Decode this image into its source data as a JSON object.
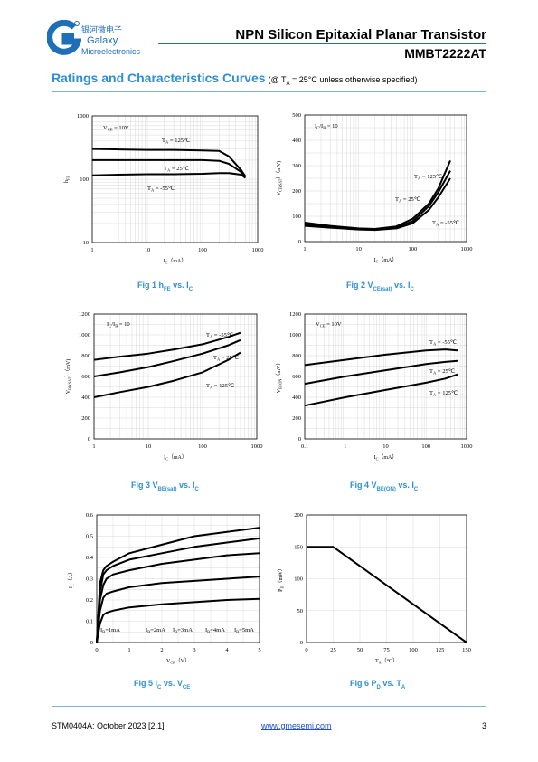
{
  "header": {
    "brand_cn": "银河微电子",
    "brand_en_1": "Galaxy",
    "brand_en_2": "Microelectronics",
    "title": "NPN Silicon Epitaxial Planar Transistor",
    "part_number": "MMBT2222AT"
  },
  "section": {
    "title": "Ratings and Characteristics Curves",
    "condition": "(@ T",
    "condition_sub": "A",
    "condition_rest": " = 25°C unless otherwise specified)"
  },
  "captions": {
    "fig1": {
      "pre": "Fig 1   h",
      "sub": "FE",
      "post": " vs. I",
      "sub2": "C"
    },
    "fig2": {
      "pre": "Fig 2   V",
      "sub": "CE(sat)",
      "post": " vs. I",
      "sub2": "C"
    },
    "fig3": {
      "pre": "Fig 3   V",
      "sub": "BE(sat)",
      "post": " vs. I",
      "sub2": "C"
    },
    "fig4": {
      "pre": "Fig 4   V",
      "sub": "BE(ON)",
      "post": " vs. I",
      "sub2": "C"
    },
    "fig5": {
      "pre": "Fig 5   I",
      "sub": "C",
      "post": " vs. V",
      "sub2": "CE"
    },
    "fig6": {
      "pre": "Fig 6   P",
      "sub": "D",
      "post": " vs. T",
      "sub2": "A"
    }
  },
  "footer": {
    "doc": "STM0404A: October 2023 [2.1]",
    "link": "www.gmesemi.com",
    "page": "3"
  },
  "chart_data": [
    {
      "id": "fig1",
      "type": "line",
      "xscale": "log",
      "yscale": "log",
      "xlim": [
        1,
        1000
      ],
      "ylim": [
        10,
        1000
      ],
      "xticks": [
        "1",
        "10",
        "100",
        "1000"
      ],
      "yticks": [
        "10",
        "100",
        "1000"
      ],
      "xlabel": "I_C (mA)",
      "ylabel": "h_FE",
      "annotations": [
        "V_CE = 10V",
        "T_A = 125℃",
        "T_A = 25℃",
        "T_A = -55℃"
      ],
      "series": [
        {
          "name": "T_A = 125℃",
          "x": [
            1,
            3,
            10,
            30,
            100,
            200,
            300,
            500,
            600
          ],
          "y": [
            300,
            295,
            290,
            290,
            285,
            280,
            230,
            140,
            110
          ]
        },
        {
          "name": "T_A = 25℃",
          "x": [
            1,
            3,
            10,
            30,
            100,
            200,
            300,
            500,
            600
          ],
          "y": [
            200,
            200,
            200,
            200,
            200,
            195,
            175,
            130,
            110
          ]
        },
        {
          "name": "T_A = -55℃",
          "x": [
            1,
            3,
            10,
            30,
            100,
            200,
            300,
            500,
            600
          ],
          "y": [
            115,
            118,
            120,
            120,
            122,
            125,
            125,
            118,
            105
          ]
        }
      ]
    },
    {
      "id": "fig2",
      "type": "line",
      "xscale": "log",
      "xlim": [
        1,
        1000
      ],
      "ylim": [
        0,
        500
      ],
      "xticks": [
        "1",
        "10",
        "100",
        "1000"
      ],
      "yticks": [
        "0",
        "100",
        "200",
        "300",
        "400",
        "500"
      ],
      "xlabel": "I_C (mA)",
      "ylabel": "V_CE(SAT) (mV)",
      "annotations": [
        "I_C/I_B = 10",
        "T_A = 125℃",
        "T_A = 25℃",
        "T_A = -55℃"
      ],
      "series": [
        {
          "name": "T_A = 125℃",
          "x": [
            1,
            3,
            10,
            20,
            50,
            100,
            200,
            300,
            500
          ],
          "y": [
            75,
            62,
            52,
            50,
            60,
            90,
            150,
            210,
            320
          ]
        },
        {
          "name": "T_A = 25℃",
          "x": [
            1,
            3,
            10,
            20,
            50,
            100,
            200,
            300,
            500
          ],
          "y": [
            68,
            58,
            50,
            48,
            55,
            80,
            140,
            195,
            280
          ]
        },
        {
          "name": "T_A = -55℃",
          "x": [
            1,
            3,
            10,
            20,
            50,
            100,
            200,
            300,
            500
          ],
          "y": [
            62,
            55,
            48,
            46,
            52,
            72,
            125,
            175,
            250
          ]
        }
      ]
    },
    {
      "id": "fig3",
      "type": "line",
      "xscale": "log",
      "xlim": [
        1,
        1000
      ],
      "ylim": [
        0,
        1200
      ],
      "xticks": [
        "1",
        "10",
        "100",
        "1000"
      ],
      "yticks": [
        "0",
        "200",
        "400",
        "600",
        "800",
        "1000",
        "1200"
      ],
      "xlabel": "I_C (mA)",
      "ylabel": "V_BE(SAT) (mV)",
      "annotations": [
        "I_C/I_B = 10",
        "T_A = -55℃",
        "T_A = 25℃",
        "T_A = 125℃"
      ],
      "series": [
        {
          "name": "T_A = -55℃",
          "x": [
            1,
            3,
            10,
            30,
            100,
            300,
            500
          ],
          "y": [
            760,
            790,
            820,
            860,
            910,
            980,
            1020
          ]
        },
        {
          "name": "T_A = 25℃",
          "x": [
            1,
            3,
            10,
            30,
            100,
            300,
            500
          ],
          "y": [
            600,
            640,
            690,
            750,
            820,
            900,
            950
          ]
        },
        {
          "name": "T_A = 125℃",
          "x": [
            1,
            3,
            10,
            30,
            100,
            300,
            500
          ],
          "y": [
            400,
            450,
            500,
            560,
            640,
            760,
            830
          ]
        }
      ]
    },
    {
      "id": "fig4",
      "type": "line",
      "xscale": "log",
      "xlim": [
        0.1,
        1000
      ],
      "ylim": [
        0,
        1200
      ],
      "xticks": [
        "0.1",
        "1",
        "10",
        "100",
        "1000"
      ],
      "yticks": [
        "0",
        "200",
        "400",
        "600",
        "800",
        "1000",
        "1200"
      ],
      "xlabel": "I_C (mA)",
      "ylabel": "V_BEON (mV)",
      "annotations": [
        "V_CE = 10V",
        "T_A = -55℃",
        "T_A = 25℃",
        "T_A = 125℃"
      ],
      "series": [
        {
          "name": "T_A = -55℃",
          "x": [
            0.1,
            1,
            10,
            100,
            300,
            600
          ],
          "y": [
            710,
            760,
            810,
            850,
            860,
            850
          ]
        },
        {
          "name": "T_A = 25℃",
          "x": [
            0.1,
            1,
            10,
            100,
            300,
            600
          ],
          "y": [
            530,
            600,
            660,
            720,
            740,
            750
          ]
        },
        {
          "name": "T_A = 125℃",
          "x": [
            0.1,
            1,
            10,
            100,
            300,
            600
          ],
          "y": [
            320,
            400,
            470,
            540,
            580,
            620
          ]
        }
      ]
    },
    {
      "id": "fig5",
      "type": "line",
      "xlim": [
        0,
        5
      ],
      "ylim": [
        0,
        0.6
      ],
      "xticks": [
        "0",
        "1",
        "2",
        "3",
        "4",
        "5"
      ],
      "yticks": [
        "0",
        "0.1",
        "0.2",
        "0.3",
        "0.4",
        "0.5",
        "0.6"
      ],
      "xlabel": "V_CE (V)",
      "ylabel": "I_C (A)",
      "annotations": [
        "I_B=1mA",
        "I_B=2mA",
        "I_B=3mA",
        "I_B=4mA",
        "I_B=5mA"
      ],
      "series": [
        {
          "name": "I_B=1mA",
          "x": [
            0,
            0.1,
            0.2,
            0.3,
            0.5,
            1,
            2,
            3,
            4,
            5
          ],
          "y": [
            0,
            0.09,
            0.13,
            0.14,
            0.15,
            0.165,
            0.18,
            0.19,
            0.2,
            0.205
          ]
        },
        {
          "name": "I_B=2mA",
          "x": [
            0,
            0.1,
            0.2,
            0.3,
            0.5,
            1,
            2,
            3,
            4,
            5
          ],
          "y": [
            0,
            0.15,
            0.21,
            0.23,
            0.24,
            0.26,
            0.28,
            0.29,
            0.3,
            0.31
          ]
        },
        {
          "name": "I_B=3mA",
          "x": [
            0,
            0.1,
            0.2,
            0.3,
            0.5,
            1,
            2,
            3,
            4,
            5
          ],
          "y": [
            0,
            0.2,
            0.27,
            0.3,
            0.32,
            0.34,
            0.37,
            0.39,
            0.41,
            0.42
          ]
        },
        {
          "name": "I_B=4mA",
          "x": [
            0,
            0.1,
            0.2,
            0.3,
            0.5,
            1,
            2,
            3,
            4,
            5
          ],
          "y": [
            0,
            0.24,
            0.32,
            0.34,
            0.36,
            0.39,
            0.42,
            0.45,
            0.47,
            0.49
          ]
        },
        {
          "name": "I_B=5mA",
          "x": [
            0,
            0.1,
            0.2,
            0.3,
            0.5,
            1,
            2,
            3,
            4,
            5
          ],
          "y": [
            0,
            0.28,
            0.34,
            0.36,
            0.38,
            0.42,
            0.46,
            0.5,
            0.52,
            0.54
          ]
        }
      ]
    },
    {
      "id": "fig6",
      "type": "line",
      "xlim": [
        0,
        150
      ],
      "ylim": [
        0,
        200
      ],
      "xticks": [
        "0",
        "25",
        "50",
        "75",
        "100",
        "125",
        "150"
      ],
      "yticks": [
        "0",
        "50",
        "100",
        "150",
        "200"
      ],
      "xlabel": "T_A (°C)",
      "ylabel": "P_D (mW)",
      "series": [
        {
          "x": [
            0,
            25,
            150
          ],
          "y": [
            150,
            150,
            0
          ]
        }
      ]
    }
  ]
}
